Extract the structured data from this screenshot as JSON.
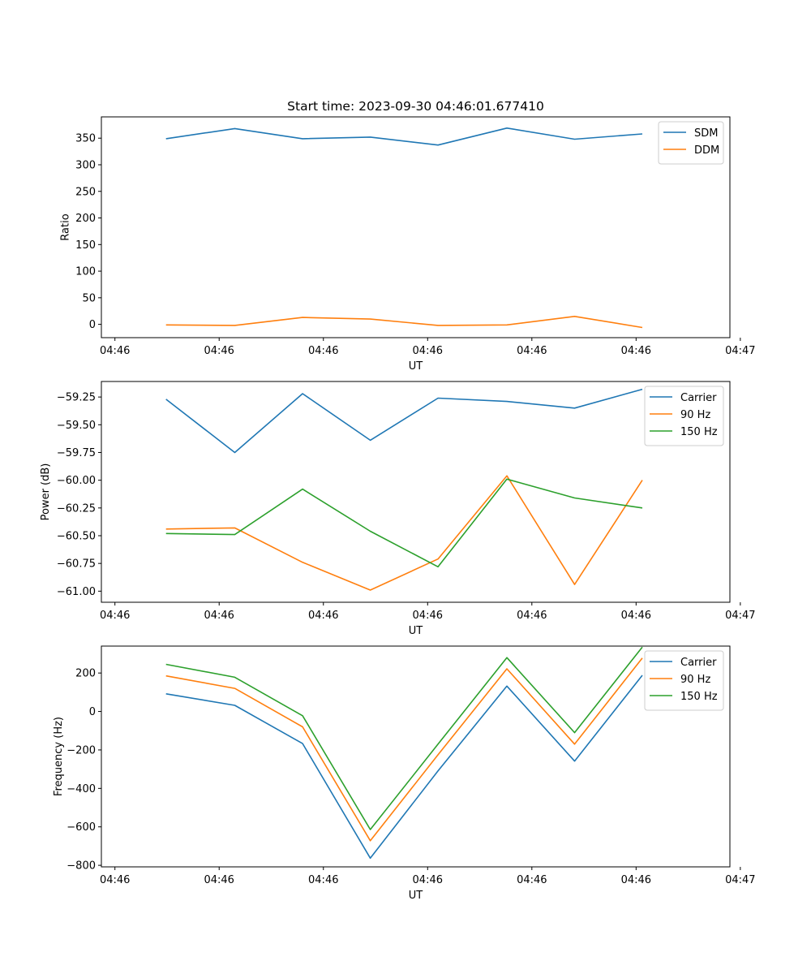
{
  "chart_data": [
    {
      "type": "line",
      "title": "Start time: 2023-09-30 04:46:01.677410",
      "xlabel": "UT",
      "ylabel": "Ratio",
      "xlim": [
        -0.13,
        5.9
      ],
      "ylim": [
        -25,
        390
      ],
      "x_ticks": [
        0,
        1,
        2,
        3,
        4,
        5,
        6
      ],
      "x_tick_labels": [
        "04:46",
        "04:46",
        "04:46",
        "04:46",
        "04:46",
        "04:46",
        "04:47"
      ],
      "y_ticks": [
        0,
        50,
        100,
        150,
        200,
        250,
        300,
        350
      ],
      "y_tick_labels": [
        "0",
        "50",
        "100",
        "150",
        "200",
        "250",
        "300",
        "350"
      ],
      "x": [
        0.49,
        1.15,
        1.8,
        2.45,
        3.1,
        3.76,
        4.41,
        5.06
      ],
      "legend": "top-right",
      "series": [
        {
          "name": "SDM",
          "color": "#1f77b4",
          "values": [
            349,
            368,
            349,
            352,
            337,
            369,
            348,
            358
          ]
        },
        {
          "name": "DDM",
          "color": "#ff7f0e",
          "values": [
            -1,
            -2,
            13,
            10,
            -2,
            -1,
            15,
            -6
          ]
        }
      ]
    },
    {
      "type": "line",
      "xlabel": "UT",
      "ylabel": "Power (dB)",
      "xlim": [
        -0.13,
        5.9
      ],
      "ylim": [
        -61.1,
        -59.11
      ],
      "x_ticks": [
        0,
        1,
        2,
        3,
        4,
        5,
        6
      ],
      "x_tick_labels": [
        "04:46",
        "04:46",
        "04:46",
        "04:46",
        "04:46",
        "04:46",
        "04:47"
      ],
      "y_ticks": [
        -61.0,
        -60.75,
        -60.5,
        -60.25,
        -60.0,
        -59.75,
        -59.5,
        -59.25
      ],
      "y_tick_labels": [
        "−61.00",
        "−60.75",
        "−60.50",
        "−60.25",
        "−60.00",
        "−59.75",
        "−59.50",
        "−59.25"
      ],
      "x": [
        0.49,
        1.15,
        1.8,
        2.45,
        3.1,
        3.76,
        4.41,
        5.06
      ],
      "legend": "top-right",
      "series": [
        {
          "name": "Carrier",
          "color": "#1f77b4",
          "values": [
            -59.27,
            -59.75,
            -59.22,
            -59.64,
            -59.26,
            -59.29,
            -59.35,
            -59.18
          ]
        },
        {
          "name": "90 Hz",
          "color": "#ff7f0e",
          "values": [
            -60.44,
            -60.43,
            -60.74,
            -60.99,
            -60.71,
            -59.96,
            -60.94,
            -60.0
          ]
        },
        {
          "name": "150 Hz",
          "color": "#2ca02c",
          "values": [
            -60.48,
            -60.49,
            -60.08,
            -60.46,
            -60.78,
            -59.99,
            -60.16,
            -60.25
          ]
        }
      ]
    },
    {
      "type": "line",
      "xlabel": "UT",
      "ylabel": "Frequency (Hz)",
      "xlim": [
        -0.13,
        5.9
      ],
      "ylim": [
        -808,
        340
      ],
      "x_ticks": [
        0,
        1,
        2,
        3,
        4,
        5,
        6
      ],
      "x_tick_labels": [
        "04:46",
        "04:46",
        "04:46",
        "04:46",
        "04:46",
        "04:46",
        "04:47"
      ],
      "y_ticks": [
        -800,
        -600,
        -400,
        -200,
        0,
        200
      ],
      "y_tick_labels": [
        "−800",
        "−600",
        "−400",
        "−200",
        "0",
        "200"
      ],
      "x": [
        0.49,
        1.15,
        1.8,
        2.45,
        3.1,
        3.76,
        4.41,
        5.06
      ],
      "legend": "top-right",
      "series": [
        {
          "name": "Carrier",
          "color": "#1f77b4",
          "values": [
            92,
            32,
            -167,
            -763,
            -309,
            132,
            -258,
            188
          ]
        },
        {
          "name": "90 Hz",
          "color": "#ff7f0e",
          "values": [
            185,
            120,
            -80,
            -672,
            -225,
            222,
            -170,
            278
          ]
        },
        {
          "name": "150 Hz",
          "color": "#2ca02c",
          "values": [
            245,
            178,
            -22,
            -614,
            -170,
            280,
            -110,
            335
          ]
        }
      ]
    }
  ]
}
